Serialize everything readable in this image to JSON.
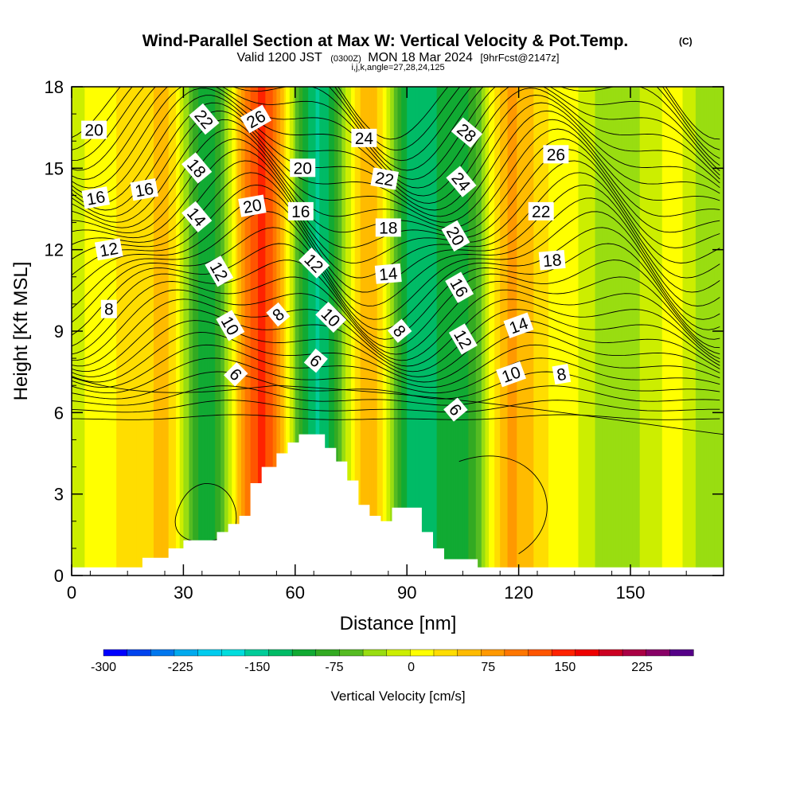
{
  "chart_data": {
    "type": "heatmap",
    "title": "Wind-Parallel Section at Max W: Vertical Velocity & Pot.Temp.",
    "title_mark": "(C)",
    "subtitle": {
      "valid": "Valid 1200 JST",
      "utc": "(0300Z)",
      "date": "MON 18 Mar 2024",
      "fcst": "[9hrFcst@2147z]"
    },
    "indices": "i,j,k,angle=27,28,24,125",
    "xlabel": "Distance [nm]",
    "ylabel": "Height [Kft MSL]",
    "xlim": [
      0,
      175
    ],
    "ylim": [
      0,
      18
    ],
    "x_ticks": [
      "0",
      "30",
      "60",
      "90",
      "120",
      "150"
    ],
    "y_ticks": [
      "0",
      "3",
      "6",
      "9",
      "12",
      "15",
      "18"
    ],
    "grid": false,
    "colorbar": {
      "label": "Vertical Velocity [cm/s]",
      "ticks": [
        "-300",
        "-225",
        "-150",
        "-75",
        "0",
        "75",
        "150",
        "225"
      ],
      "range": [
        -300,
        275
      ],
      "colors": [
        "#0000ff",
        "#0044ee",
        "#0077ee",
        "#00aaee",
        "#00ccee",
        "#00dddd",
        "#00cc99",
        "#00bb66",
        "#11aa33",
        "#33aa22",
        "#55bb22",
        "#99dd11",
        "#ccee00",
        "#ffff00",
        "#ffdd00",
        "#ffbb00",
        "#ff9900",
        "#ff7700",
        "#ff5500",
        "#ff2200",
        "#ee0000",
        "#cc0022",
        "#aa0044",
        "#880066",
        "#550088"
      ]
    },
    "terrain_profile_kft": [
      [
        0,
        0.3
      ],
      [
        19,
        0.3
      ],
      [
        19,
        0.65
      ],
      [
        26,
        0.65
      ],
      [
        26,
        1.0
      ],
      [
        30,
        1.0
      ],
      [
        30,
        1.3
      ],
      [
        39,
        1.3
      ],
      [
        39,
        1.6
      ],
      [
        42,
        1.6
      ],
      [
        42,
        1.9
      ],
      [
        45,
        1.9
      ],
      [
        45,
        2.2
      ],
      [
        48,
        2.2
      ],
      [
        48,
        3.4
      ],
      [
        51,
        3.4
      ],
      [
        51,
        4.0
      ],
      [
        55,
        4.0
      ],
      [
        55,
        4.5
      ],
      [
        58,
        4.5
      ],
      [
        58,
        4.9
      ],
      [
        61,
        4.9
      ],
      [
        61,
        5.2
      ],
      [
        68,
        5.2
      ],
      [
        68,
        4.7
      ],
      [
        71,
        4.7
      ],
      [
        71,
        4.2
      ],
      [
        74,
        4.2
      ],
      [
        74,
        3.5
      ],
      [
        77,
        3.5
      ],
      [
        77,
        2.6
      ],
      [
        80,
        2.6
      ],
      [
        80,
        2.2
      ],
      [
        83,
        2.2
      ],
      [
        83,
        2.0
      ],
      [
        86,
        2.0
      ],
      [
        86,
        2.5
      ],
      [
        94,
        2.5
      ],
      [
        94,
        1.6
      ],
      [
        97,
        1.6
      ],
      [
        97,
        1.0
      ],
      [
        100,
        1.0
      ],
      [
        100,
        0.6
      ],
      [
        109,
        0.6
      ],
      [
        109,
        0.3
      ],
      [
        175,
        0.3
      ]
    ],
    "vertical_velocity_columns": [
      {
        "x": 0,
        "w": -5
      },
      {
        "x": 15,
        "w": 25
      },
      {
        "x": 25,
        "w": 50
      },
      {
        "x": 36,
        "w": -110
      },
      {
        "x": 51,
        "w": 140
      },
      {
        "x": 66,
        "w": -140
      },
      {
        "x": 80,
        "w": 60
      },
      {
        "x": 92,
        "w": -130
      },
      {
        "x": 105,
        "w": -100
      },
      {
        "x": 118,
        "w": 70
      },
      {
        "x": 132,
        "w": 10
      },
      {
        "x": 146,
        "w": -40
      },
      {
        "x": 162,
        "w": 5
      },
      {
        "x": 172,
        "w": -45
      }
    ],
    "theta_contour_labels": [
      {
        "text": "20",
        "x": 6,
        "y": 16.4,
        "rot": 0
      },
      {
        "text": "22",
        "x": 35.5,
        "y": 16.8,
        "rot": 50
      },
      {
        "text": "26",
        "x": 49.5,
        "y": 16.8,
        "rot": -30
      },
      {
        "text": "24",
        "x": 78.5,
        "y": 16.1,
        "rot": 0
      },
      {
        "text": "28",
        "x": 106,
        "y": 16.3,
        "rot": 40
      },
      {
        "text": "26",
        "x": 130,
        "y": 15.5,
        "rot": 0
      },
      {
        "text": "18",
        "x": 33.5,
        "y": 15.0,
        "rot": 50
      },
      {
        "text": "20",
        "x": 62,
        "y": 15.0,
        "rot": 0
      },
      {
        "text": "22",
        "x": 84,
        "y": 14.6,
        "rot": 10
      },
      {
        "text": "24",
        "x": 104.5,
        "y": 14.5,
        "rot": 50
      },
      {
        "text": "16",
        "x": 6.5,
        "y": 13.9,
        "rot": -10
      },
      {
        "text": "16",
        "x": 19.5,
        "y": 14.2,
        "rot": -10
      },
      {
        "text": "20",
        "x": 48.5,
        "y": 13.6,
        "rot": -10
      },
      {
        "text": "16",
        "x": 61.5,
        "y": 13.4,
        "rot": 0
      },
      {
        "text": "22",
        "x": 126,
        "y": 13.4,
        "rot": 0
      },
      {
        "text": "14",
        "x": 33.5,
        "y": 13.2,
        "rot": 50
      },
      {
        "text": "18",
        "x": 85,
        "y": 12.8,
        "rot": 0
      },
      {
        "text": "20",
        "x": 103,
        "y": 12.5,
        "rot": 60
      },
      {
        "text": "12",
        "x": 10,
        "y": 12.0,
        "rot": -10
      },
      {
        "text": "18",
        "x": 129,
        "y": 11.6,
        "rot": -5
      },
      {
        "text": "12",
        "x": 65,
        "y": 11.5,
        "rot": 45
      },
      {
        "text": "12",
        "x": 39.5,
        "y": 11.2,
        "rot": 60
      },
      {
        "text": "14",
        "x": 85,
        "y": 11.1,
        "rot": -5
      },
      {
        "text": "16",
        "x": 104,
        "y": 10.6,
        "rot": 60
      },
      {
        "text": "8",
        "x": 10,
        "y": 9.8,
        "rot": 0
      },
      {
        "text": "8",
        "x": 55.5,
        "y": 9.6,
        "rot": -40
      },
      {
        "text": "10",
        "x": 69.5,
        "y": 9.5,
        "rot": 45
      },
      {
        "text": "10",
        "x": 42.5,
        "y": 9.2,
        "rot": 60
      },
      {
        "text": "14",
        "x": 120,
        "y": 9.2,
        "rot": -20
      },
      {
        "text": "8",
        "x": 88,
        "y": 9.0,
        "rot": 50
      },
      {
        "text": "12",
        "x": 105,
        "y": 8.7,
        "rot": 60
      },
      {
        "text": "6",
        "x": 65.5,
        "y": 7.9,
        "rot": 40
      },
      {
        "text": "6",
        "x": 44,
        "y": 7.4,
        "rot": 45
      },
      {
        "text": "10",
        "x": 118,
        "y": 7.4,
        "rot": -20
      },
      {
        "text": "8",
        "x": 131.5,
        "y": 7.4,
        "rot": -10
      },
      {
        "text": "6",
        "x": 103,
        "y": 6.1,
        "rot": 50
      }
    ]
  }
}
